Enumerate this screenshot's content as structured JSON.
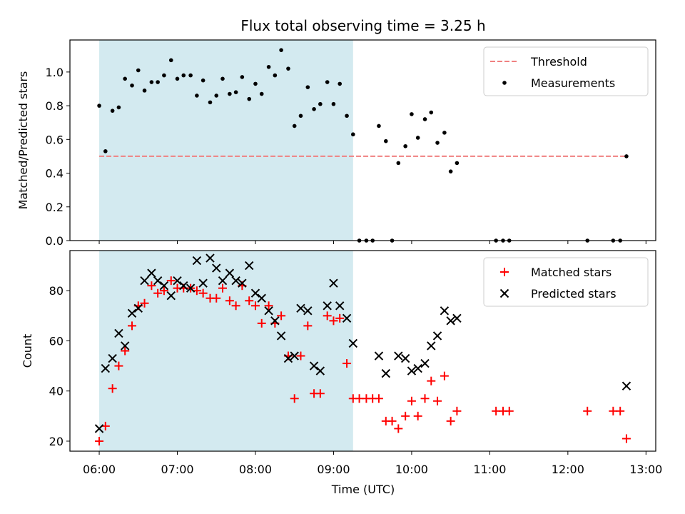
{
  "figure": {
    "title": "Flux total observing time = 3.25 h",
    "xlabel": "Time (UTC)",
    "xticks": [
      {
        "value": 6,
        "label": "06:00"
      },
      {
        "value": 7,
        "label": "07:00"
      },
      {
        "value": 8,
        "label": "08:00"
      },
      {
        "value": 9,
        "label": "09:00"
      },
      {
        "value": 10,
        "label": "10:00"
      },
      {
        "value": 11,
        "label": "11:00"
      },
      {
        "value": 12,
        "label": "12:00"
      },
      {
        "value": 13,
        "label": "13:00"
      }
    ],
    "xlim": [
      5.625,
      13.125
    ],
    "shaded_interval": {
      "x": [
        6.0,
        9.25
      ],
      "color": "#d3eaf0"
    },
    "colors": {
      "threshold": "#f08080",
      "measurements": "#000000",
      "matched": "#ff0000",
      "predicted": "#000000"
    }
  },
  "chart_data": [
    {
      "type": "scatter",
      "ylabel": "Matched/Predicted stars",
      "ylim": [
        0,
        1.19
      ],
      "yticks": [
        0.0,
        0.2,
        0.4,
        0.6,
        0.8,
        1.0
      ],
      "ytick_labels": [
        "0.0",
        "0.2",
        "0.4",
        "0.6",
        "0.8",
        "1.0"
      ],
      "legend_position": "top-right",
      "threshold": {
        "name": "Threshold",
        "y": 0.5,
        "x": [
          6.0,
          12.75
        ]
      },
      "series": [
        {
          "name": "Measurements",
          "marker": "dot",
          "x": [
            6.0,
            6.08,
            6.17,
            6.25,
            6.33,
            6.42,
            6.5,
            6.58,
            6.67,
            6.75,
            6.83,
            6.92,
            7.0,
            7.08,
            7.17,
            7.25,
            7.33,
            7.42,
            7.5,
            7.58,
            7.67,
            7.75,
            7.83,
            7.92,
            8.0,
            8.08,
            8.17,
            8.25,
            8.33,
            8.42,
            8.5,
            8.58,
            8.67,
            8.75,
            8.83,
            8.92,
            9.0,
            9.08,
            9.17,
            9.25,
            9.33,
            9.42,
            9.5,
            9.58,
            9.67,
            9.75,
            9.83,
            9.92,
            10.0,
            10.08,
            10.17,
            10.25,
            10.33,
            10.42,
            10.5,
            10.58,
            11.08,
            11.17,
            11.25,
            12.25,
            12.58,
            12.67,
            12.75
          ],
          "y": [
            0.8,
            0.53,
            0.77,
            0.79,
            0.96,
            0.92,
            1.01,
            0.89,
            0.94,
            0.94,
            0.98,
            1.07,
            0.96,
            0.98,
            0.98,
            0.86,
            0.95,
            0.82,
            0.86,
            0.96,
            0.87,
            0.88,
            0.97,
            0.84,
            0.93,
            0.87,
            1.03,
            0.98,
            1.13,
            1.02,
            0.68,
            0.74,
            0.91,
            0.78,
            0.81,
            0.94,
            0.81,
            0.93,
            0.74,
            0.63,
            0.0,
            0.0,
            0.0,
            0.68,
            0.59,
            0.0,
            0.46,
            0.56,
            0.75,
            0.61,
            0.72,
            0.76,
            0.58,
            0.64,
            0.41,
            0.46,
            0.0,
            0.0,
            0.0,
            0.0,
            0.0,
            0.0,
            0.5
          ]
        }
      ]
    },
    {
      "type": "scatter",
      "ylabel": "Count",
      "ylim": [
        16,
        96
      ],
      "yticks": [
        20,
        40,
        60,
        80
      ],
      "ytick_labels": [
        "20",
        "40",
        "60",
        "80"
      ],
      "legend_position": "top-right",
      "series": [
        {
          "name": "Matched stars",
          "marker": "plus",
          "x": [
            6.0,
            6.08,
            6.17,
            6.25,
            6.33,
            6.42,
            6.5,
            6.58,
            6.67,
            6.75,
            6.83,
            6.92,
            7.0,
            7.08,
            7.17,
            7.25,
            7.33,
            7.42,
            7.5,
            7.58,
            7.67,
            7.75,
            7.83,
            7.92,
            8.0,
            8.08,
            8.17,
            8.25,
            8.33,
            8.42,
            8.5,
            8.58,
            8.67,
            8.75,
            8.83,
            8.92,
            9.0,
            9.08,
            9.17,
            9.25,
            9.33,
            9.42,
            9.5,
            9.58,
            9.67,
            9.75,
            9.83,
            9.92,
            10.0,
            10.08,
            10.17,
            10.25,
            10.33,
            10.42,
            10.5,
            10.58,
            11.08,
            11.17,
            11.25,
            12.25,
            12.58,
            12.67,
            12.75
          ],
          "y": [
            20,
            26,
            41,
            50,
            56,
            66,
            74,
            75,
            82,
            79,
            80,
            84,
            81,
            81,
            81,
            80,
            79,
            77,
            77,
            81,
            76,
            74,
            82,
            76,
            74,
            67,
            74,
            67,
            70,
            54,
            37,
            54,
            66,
            39,
            39,
            70,
            68,
            69,
            51,
            37,
            37,
            37,
            37,
            37,
            28,
            28,
            25,
            30,
            36,
            30,
            37,
            44,
            36,
            46,
            28,
            32,
            32,
            32,
            32,
            32,
            32,
            32,
            21
          ]
        },
        {
          "name": "Predicted stars",
          "marker": "x",
          "x": [
            6.0,
            6.08,
            6.17,
            6.25,
            6.33,
            6.42,
            6.5,
            6.58,
            6.67,
            6.75,
            6.83,
            6.92,
            7.0,
            7.08,
            7.17,
            7.25,
            7.33,
            7.42,
            7.5,
            7.58,
            7.67,
            7.75,
            7.83,
            7.92,
            8.0,
            8.08,
            8.17,
            8.25,
            8.33,
            8.42,
            8.5,
            8.58,
            8.67,
            8.75,
            8.83,
            8.92,
            9.0,
            9.08,
            9.17,
            9.25,
            9.58,
            9.67,
            9.83,
            9.92,
            10.0,
            10.08,
            10.17,
            10.25,
            10.33,
            10.42,
            10.5,
            10.58,
            12.75
          ],
          "y": [
            25,
            49,
            53,
            63,
            58,
            71,
            73,
            84,
            87,
            84,
            82,
            78,
            84,
            82,
            81,
            92,
            83,
            93,
            89,
            84,
            87,
            84,
            83,
            90,
            79,
            77,
            72,
            68,
            62,
            53,
            54,
            73,
            72,
            50,
            48,
            74,
            83,
            74,
            69,
            59,
            54,
            47,
            54,
            53,
            48,
            49,
            51,
            58,
            62,
            72,
            68,
            69,
            42
          ]
        }
      ]
    }
  ]
}
